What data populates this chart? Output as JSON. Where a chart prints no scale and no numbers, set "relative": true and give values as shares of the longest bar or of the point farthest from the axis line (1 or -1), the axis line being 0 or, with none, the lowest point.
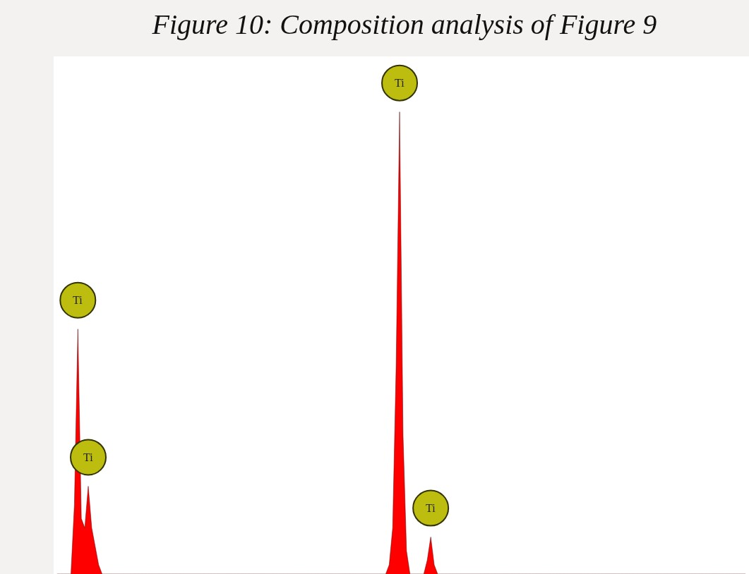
{
  "chart_data": {
    "type": "area",
    "title": "Figure 10: Composition analysis of Figure 9",
    "relative": true,
    "categories": [
      null,
      null,
      null,
      null,
      null,
      null,
      null,
      null,
      null,
      null,
      null,
      null,
      null,
      null,
      null,
      null,
      null,
      null,
      null,
      null,
      null,
      null,
      null,
      null,
      null,
      null,
      null,
      null,
      null,
      null,
      null,
      null,
      null,
      null,
      null,
      null,
      null,
      null,
      null,
      null,
      null,
      null,
      null,
      null,
      null,
      null,
      null,
      null,
      null,
      null,
      null,
      null,
      null,
      null,
      null,
      null,
      null,
      null,
      null,
      null,
      null,
      null,
      null,
      null,
      null,
      null,
      null,
      null,
      null,
      null,
      null,
      null,
      null,
      null,
      null,
      null,
      null,
      null,
      null,
      null,
      null,
      null,
      null,
      null,
      null,
      null,
      null,
      null,
      null,
      null,
      null,
      null,
      null,
      null,
      null,
      null,
      null,
      null,
      null,
      null,
      null,
      null,
      null,
      null,
      null,
      null,
      null,
      null,
      null,
      null,
      null,
      null,
      null,
      null,
      null,
      null,
      null,
      null,
      null,
      null,
      null,
      null,
      null,
      null,
      null,
      null,
      null,
      null,
      null,
      null,
      null,
      null,
      null,
      null,
      null,
      null,
      null,
      null,
      null,
      null,
      null,
      null,
      null,
      null,
      null,
      null,
      null,
      null,
      null,
      null,
      null,
      null,
      null,
      null,
      null,
      null,
      null,
      null,
      null,
      null,
      null,
      null,
      null,
      null,
      null,
      null,
      null,
      null,
      null,
      null,
      null,
      null,
      null,
      null,
      null,
      null,
      null,
      null,
      null,
      null,
      null,
      null,
      null,
      null,
      null,
      null,
      null,
      null,
      null,
      null,
      null,
      null,
      null,
      null,
      null,
      null,
      null,
      null,
      null,
      null
    ],
    "series": [
      {
        "color": "#ff0000",
        "values": [
          0,
          0,
          0,
          0,
          0,
          0.15,
          0.53,
          0.12,
          0.1,
          0.19,
          0.1,
          0.06,
          0.02,
          0,
          0,
          0,
          0,
          0,
          0,
          0,
          0,
          0,
          0,
          0,
          0,
          0,
          0,
          0,
          0,
          0,
          0,
          0,
          0,
          0,
          0,
          0,
          0,
          0,
          0,
          0,
          0,
          0,
          0,
          0,
          0,
          0,
          0,
          0,
          0,
          0,
          0,
          0,
          0,
          0,
          0,
          0,
          0,
          0,
          0,
          0,
          0,
          0,
          0,
          0,
          0,
          0,
          0,
          0,
          0,
          0,
          0,
          0,
          0,
          0,
          0,
          0,
          0,
          0,
          0,
          0,
          0,
          0,
          0,
          0,
          0,
          0,
          0,
          0,
          0,
          0,
          0,
          0,
          0,
          0,
          0,
          0,
          0.02,
          0.1,
          0.45,
          1,
          0.3,
          0.05,
          0,
          0,
          0,
          0,
          0,
          0.03,
          0.08,
          0.02,
          0,
          0,
          0,
          0,
          0,
          0,
          0,
          0,
          0,
          0,
          0,
          0,
          0,
          0,
          0,
          0,
          0,
          0,
          0,
          0,
          0,
          0,
          0,
          0,
          0,
          0,
          0,
          0,
          0,
          0,
          0,
          0,
          0,
          0,
          0,
          0,
          0,
          0,
          0,
          0,
          0,
          0,
          0,
          0,
          0,
          0,
          0,
          0,
          0,
          0,
          0,
          0,
          0,
          0,
          0,
          0,
          0,
          0,
          0,
          0,
          0,
          0,
          0,
          0,
          0,
          0,
          0,
          0,
          0,
          0,
          0,
          0,
          0,
          0,
          0,
          0,
          0,
          0,
          0,
          0,
          0,
          0,
          0,
          0,
          0,
          0,
          0,
          0,
          0,
          0
        ]
      }
    ],
    "annotations": [
      "Ti",
      "Ti",
      "Ti",
      "Ti"
    ]
  }
}
